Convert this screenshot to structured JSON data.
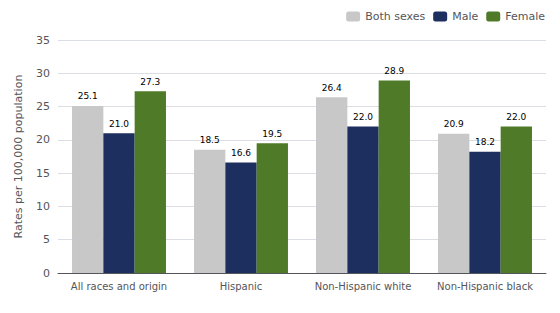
{
  "chart_data": {
    "type": "bar",
    "ylabel": "Rates per 100,000 population",
    "categories": [
      "All races and origin",
      "Hispanic",
      "Non-Hispanic white",
      "Non-Hispanic black"
    ],
    "series": [
      {
        "name": "Both sexes",
        "color": "#c8c8c8",
        "values": [
          25.1,
          18.5,
          26.4,
          20.9
        ],
        "value_labels": [
          "25.1",
          "18.5",
          "26.4",
          "20.9"
        ]
      },
      {
        "name": "Male",
        "color": "#1c2f5e",
        "values": [
          21.0,
          16.6,
          22.0,
          18.2
        ],
        "value_labels": [
          "21.0",
          "16.6",
          "22.0",
          "18.2"
        ]
      },
      {
        "name": "Female",
        "color": "#4f7a28",
        "values": [
          27.3,
          19.5,
          28.9,
          22.0
        ],
        "value_labels": [
          "27.3",
          "19.5",
          "28.9",
          "22.0"
        ]
      }
    ],
    "ylim": [
      0,
      35
    ],
    "yticks": [
      0,
      5,
      10,
      15,
      20,
      25,
      30,
      35
    ],
    "grid": true,
    "legend": "upper right",
    "data_labels": true
  }
}
